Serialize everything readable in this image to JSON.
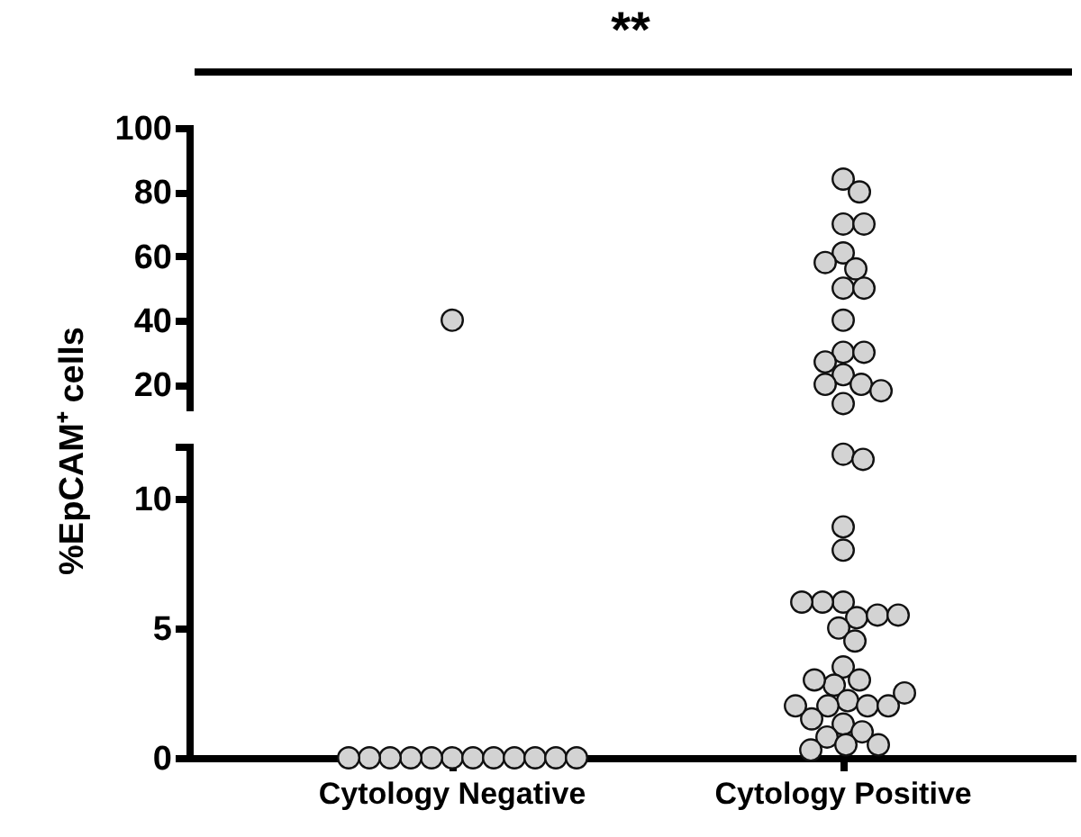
{
  "chart_data": [
    {
      "type": "scatter",
      "annotations": [
        "**"
      ],
      "ylabel": "%EpCAM⁺ cells",
      "categories": [
        "Cytology Negative",
        "Cytology Positive"
      ],
      "ylim": [
        13,
        100
      ],
      "yticks": [
        20,
        40,
        60,
        80,
        100
      ],
      "tick_labels": "y",
      "marker": "circle",
      "series": [
        {
          "color": "#d3d3d3",
          "x": [
            "Cytology Negative",
            "Cytology Positive",
            "Cytology Positive",
            "Cytology Positive",
            "Cytology Positive",
            "Cytology Positive",
            "Cytology Positive",
            "Cytology Positive",
            "Cytology Positive",
            "Cytology Positive",
            "Cytology Positive",
            "Cytology Positive",
            "Cytology Positive",
            "Cytology Positive",
            "Cytology Positive",
            "Cytology Positive",
            "Cytology Positive",
            "Cytology Positive",
            "Cytology Positive"
          ],
          "values": [
            40,
            84,
            80,
            70,
            70,
            61,
            56,
            58,
            50,
            50,
            40,
            30,
            30,
            27,
            23,
            20,
            20,
            18,
            14
          ]
        }
      ]
    },
    {
      "type": "scatter",
      "categories": [
        "Cytology Negative",
        "Cytology Positive"
      ],
      "ylim": [
        0,
        12
      ],
      "yticks": [
        0,
        5,
        10,
        {
          "value": 12,
          "label": null
        }
      ],
      "marker": "circle",
      "series": [
        {
          "color": "#d3d3d3",
          "x": [
            "Cytology Negative",
            "Cytology Negative",
            "Cytology Negative",
            "Cytology Negative",
            "Cytology Negative",
            "Cytology Negative",
            "Cytology Negative",
            "Cytology Negative",
            "Cytology Negative",
            "Cytology Negative",
            "Cytology Negative",
            "Cytology Negative",
            "Cytology Positive",
            "Cytology Positive",
            "Cytology Positive",
            "Cytology Positive",
            "Cytology Positive",
            "Cytology Positive",
            "Cytology Positive",
            "Cytology Positive",
            "Cytology Positive",
            "Cytology Positive",
            "Cytology Positive",
            "Cytology Positive",
            "Cytology Positive",
            "Cytology Positive",
            "Cytology Positive",
            "Cytology Positive",
            "Cytology Positive",
            "Cytology Positive",
            "Cytology Positive",
            "Cytology Positive",
            "Cytology Positive",
            "Cytology Positive",
            "Cytology Positive",
            "Cytology Positive",
            "Cytology Positive",
            "Cytology Positive",
            "Cytology Positive",
            "Cytology Positive",
            "Cytology Positive"
          ],
          "values": [
            0,
            0,
            0,
            0,
            0,
            0,
            0,
            0,
            0,
            0,
            0,
            0,
            11.7,
            11.5,
            8.9,
            8.0,
            6.0,
            5.4,
            6.0,
            5.5,
            6.0,
            5.5,
            5.0,
            4.5,
            3.5,
            3.0,
            2.8,
            2.2,
            2.0,
            2.0,
            3.0,
            1.5,
            2.0,
            2.0,
            2.5,
            1.3,
            1.0,
            0.8,
            0.5,
            0.5,
            0.3
          ]
        }
      ]
    }
  ]
}
